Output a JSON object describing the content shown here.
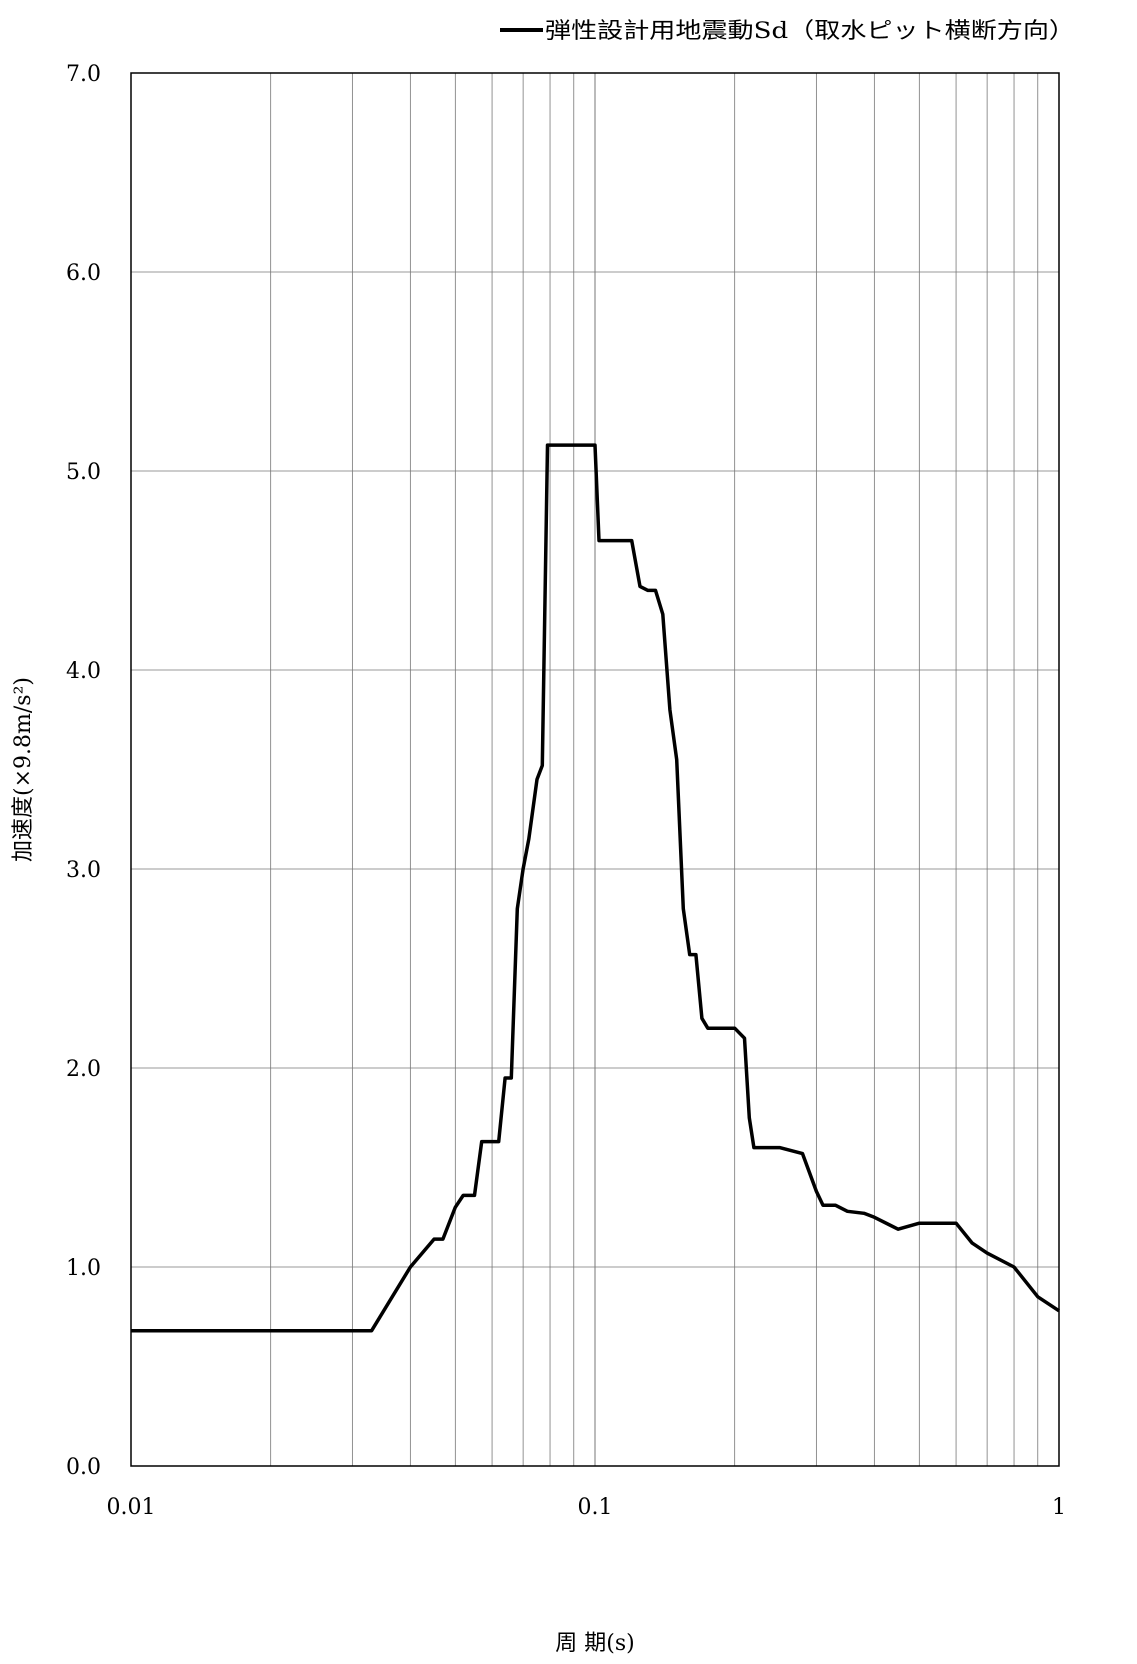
{
  "chart_data": {
    "type": "line",
    "title": "",
    "xlabel": "周 期(s)",
    "ylabel": "加速度(×9.8m/s²)",
    "x_scale": "log",
    "xlim": [
      0.01,
      1
    ],
    "ylim": [
      0,
      7
    ],
    "x_ticks": [
      {
        "value": 0.01,
        "label": "0.01"
      },
      {
        "value": 0.1,
        "label": "0.1"
      },
      {
        "value": 1,
        "label": "1"
      }
    ],
    "y_ticks": [
      {
        "value": 0,
        "label": "0.0"
      },
      {
        "value": 1,
        "label": "1.0"
      },
      {
        "value": 2,
        "label": "2.0"
      },
      {
        "value": 3,
        "label": "3.0"
      },
      {
        "value": 4,
        "label": "4.0"
      },
      {
        "value": 5,
        "label": "5.0"
      },
      {
        "value": 6,
        "label": "6.0"
      },
      {
        "value": 7,
        "label": "7.0"
      }
    ],
    "grid": true,
    "legend_position": "top-right",
    "series": [
      {
        "name": "弾性設計用地震動Sd（取水ピット横断方向）",
        "color": "#000000",
        "x": [
          0.01,
          0.02,
          0.03,
          0.033,
          0.04,
          0.045,
          0.047,
          0.05,
          0.052,
          0.055,
          0.057,
          0.059,
          0.062,
          0.064,
          0.066,
          0.068,
          0.07,
          0.072,
          0.075,
          0.077,
          0.079,
          0.081,
          0.082,
          0.085,
          0.09,
          0.1,
          0.102,
          0.11,
          0.12,
          0.125,
          0.13,
          0.135,
          0.14,
          0.145,
          0.15,
          0.155,
          0.16,
          0.165,
          0.17,
          0.175,
          0.18,
          0.185,
          0.19,
          0.2,
          0.21,
          0.215,
          0.22,
          0.23,
          0.25,
          0.28,
          0.3,
          0.31,
          0.33,
          0.35,
          0.38,
          0.4,
          0.45,
          0.5,
          0.6,
          0.65,
          0.7,
          0.8,
          0.9,
          1.0
        ],
        "y": [
          0.68,
          0.68,
          0.68,
          0.68,
          1.0,
          1.14,
          1.14,
          1.3,
          1.36,
          1.36,
          1.63,
          1.63,
          1.63,
          1.95,
          1.95,
          2.8,
          3.0,
          3.15,
          3.45,
          3.52,
          5.13,
          5.13,
          5.13,
          5.13,
          5.13,
          5.13,
          4.65,
          4.65,
          4.65,
          4.42,
          4.4,
          4.4,
          4.28,
          3.8,
          3.55,
          2.8,
          2.57,
          2.57,
          2.25,
          2.2,
          2.2,
          2.2,
          2.2,
          2.2,
          2.15,
          1.75,
          1.6,
          1.6,
          1.6,
          1.57,
          1.38,
          1.31,
          1.31,
          1.28,
          1.27,
          1.25,
          1.19,
          1.22,
          1.22,
          1.12,
          1.07,
          1.0,
          0.85,
          0.78
        ]
      }
    ]
  }
}
